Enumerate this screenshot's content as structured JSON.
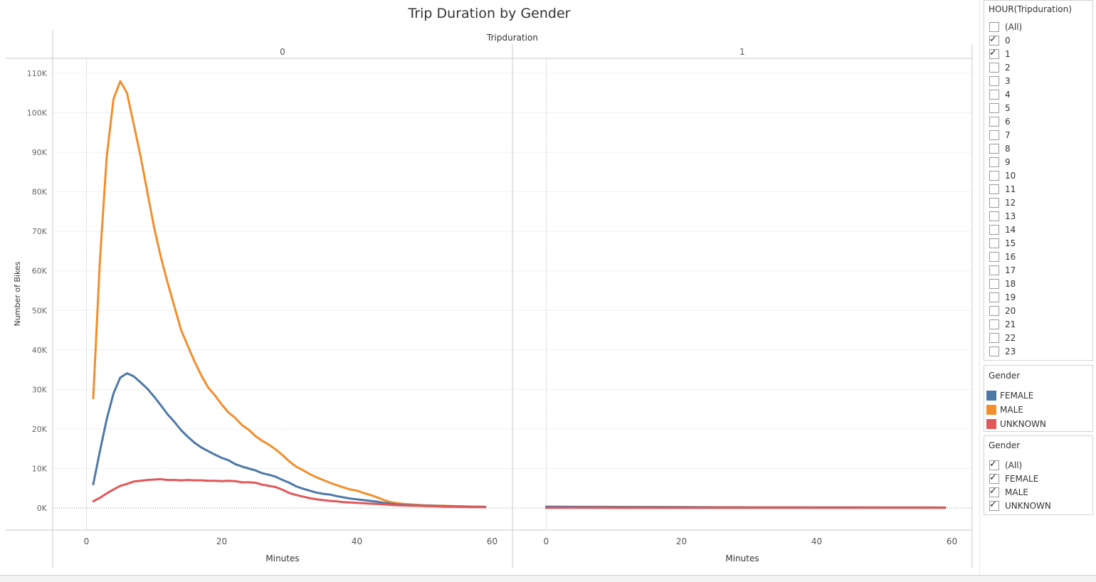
{
  "chart_data": {
    "type": "line",
    "title": "Trip Duration by Gender",
    "column_header": "Tripduration",
    "ylabel": "Number of Bikes",
    "xlabel": "Minutes",
    "ylim": [
      0,
      110000
    ],
    "yticks": [
      0,
      10000,
      20000,
      30000,
      40000,
      50000,
      60000,
      70000,
      80000,
      90000,
      100000,
      110000
    ],
    "ytick_labels": [
      "0K",
      "10K",
      "20K",
      "30K",
      "40K",
      "50K",
      "60K",
      "70K",
      "80K",
      "90K",
      "100K",
      "110K"
    ],
    "xlim": [
      -5,
      63
    ],
    "xticks": [
      0,
      20,
      40,
      60
    ],
    "grid": "horizontal",
    "panes": [
      {
        "label": "0",
        "series": [
          {
            "name": "MALE",
            "color": "#f28e2b",
            "x": [
              1,
              2,
              3,
              4,
              5,
              6,
              7,
              8,
              9,
              10,
              11,
              12,
              13,
              14,
              15,
              16,
              17,
              18,
              19,
              20,
              21,
              22,
              23,
              24,
              25,
              26,
              27,
              28,
              29,
              30,
              31,
              32,
              33,
              34,
              35,
              36,
              37,
              38,
              39,
              40,
              41,
              42,
              43,
              44,
              45,
              46,
              47,
              48,
              49,
              50,
              51,
              52,
              53,
              54,
              55,
              56,
              57,
              58,
              59
            ],
            "values": [
              27800,
              63000,
              89000,
              103500,
              108000,
              105000,
              97000,
              89000,
              80000,
              71000,
              63500,
              57000,
              51000,
              45000,
              41000,
              37000,
              33500,
              30500,
              28500,
              26200,
              24200,
              22800,
              21000,
              19800,
              18200,
              17000,
              16000,
              14800,
              13400,
              11800,
              10500,
              9600,
              8600,
              7800,
              7100,
              6400,
              5800,
              5200,
              4700,
              4400,
              3800,
              3300,
              2700,
              2000,
              1500,
              1200,
              1000,
              900,
              800,
              700,
              650,
              600,
              550,
              500,
              450,
              400,
              350,
              300,
              250
            ]
          },
          {
            "name": "FEMALE",
            "color": "#4e79a7",
            "x": [
              1,
              2,
              3,
              4,
              5,
              6,
              7,
              8,
              9,
              10,
              11,
              12,
              13,
              14,
              15,
              16,
              17,
              18,
              19,
              20,
              21,
              22,
              23,
              24,
              25,
              26,
              27,
              28,
              29,
              30,
              31,
              32,
              33,
              34,
              35,
              36,
              37,
              38,
              39,
              40,
              41,
              42,
              43,
              44,
              45,
              46,
              47,
              48,
              49,
              50,
              51,
              52,
              53,
              54,
              55,
              56,
              57,
              58,
              59
            ],
            "values": [
              6000,
              14500,
              22500,
              29000,
              33000,
              34100,
              33300,
              31800,
              30200,
              28200,
              26000,
              23700,
              21800,
              19700,
              18000,
              16500,
              15300,
              14400,
              13500,
              12700,
              12100,
              11100,
              10500,
              10000,
              9500,
              8800,
              8400,
              7900,
              7100,
              6400,
              5500,
              4900,
              4400,
              3900,
              3600,
              3400,
              3000,
              2700,
              2400,
              2200,
              2000,
              1800,
              1600,
              1300,
              1100,
              900,
              800,
              700,
              650,
              600,
              550,
              500,
              450,
              400,
              380,
              350,
              320,
              300,
              280
            ]
          },
          {
            "name": "UNKNOWN",
            "color": "#e15759",
            "x": [
              1,
              2,
              3,
              4,
              5,
              6,
              7,
              8,
              9,
              10,
              11,
              12,
              13,
              14,
              15,
              16,
              17,
              18,
              19,
              20,
              21,
              22,
              23,
              24,
              25,
              26,
              27,
              28,
              29,
              30,
              31,
              32,
              33,
              34,
              35,
              36,
              37,
              38,
              39,
              40,
              41,
              42,
              43,
              44,
              45,
              46,
              47,
              48,
              49,
              50,
              51,
              52,
              53,
              54,
              55,
              56,
              57,
              58,
              59
            ],
            "values": [
              1700,
              2600,
              3700,
              4700,
              5600,
              6100,
              6700,
              6900,
              7100,
              7200,
              7300,
              7100,
              7100,
              7000,
              7100,
              7000,
              7000,
              6900,
              6900,
              6800,
              6900,
              6800,
              6500,
              6500,
              6400,
              5900,
              5600,
              5300,
              4600,
              3800,
              3300,
              2900,
              2500,
              2200,
              2000,
              1800,
              1700,
              1500,
              1400,
              1300,
              1200,
              1100,
              1000,
              900,
              800,
              700,
              650,
              600,
              550,
              500,
              450,
              400,
              350,
              300,
              280,
              260,
              240,
              220,
              200
            ]
          }
        ]
      },
      {
        "label": "1",
        "series": [
          {
            "name": "MALE",
            "color": "#f28e2b",
            "x": [
              0,
              5,
              10,
              15,
              20,
              25,
              30,
              35,
              40,
              45,
              50,
              55,
              59
            ],
            "values": [
              350,
              300,
              280,
              250,
              220,
              200,
              180,
              160,
              150,
              140,
              130,
              120,
              110
            ]
          },
          {
            "name": "FEMALE",
            "color": "#4e79a7",
            "x": [
              0,
              5,
              10,
              15,
              20,
              25,
              30,
              35,
              40,
              45,
              50,
              55,
              59
            ],
            "values": [
              300,
              250,
              230,
              210,
              190,
              170,
              150,
              140,
              130,
              120,
              110,
              100,
              90
            ]
          },
          {
            "name": "UNKNOWN",
            "color": "#e15759",
            "x": [
              0,
              5,
              10,
              15,
              20,
              25,
              30,
              35,
              40,
              45,
              50,
              55,
              59
            ],
            "values": [
              80,
              70,
              60,
              60,
              50,
              50,
              40,
              40,
              40,
              30,
              30,
              30,
              30
            ]
          }
        ]
      }
    ]
  },
  "filter_hour": {
    "title": "HOUR(Tripduration)",
    "items": [
      {
        "label": "(All)",
        "checked": false
      },
      {
        "label": "0",
        "checked": true
      },
      {
        "label": "1",
        "checked": true
      },
      {
        "label": "2",
        "checked": false
      },
      {
        "label": "3",
        "checked": false
      },
      {
        "label": "4",
        "checked": false
      },
      {
        "label": "5",
        "checked": false
      },
      {
        "label": "6",
        "checked": false
      },
      {
        "label": "7",
        "checked": false
      },
      {
        "label": "8",
        "checked": false
      },
      {
        "label": "9",
        "checked": false
      },
      {
        "label": "10",
        "checked": false
      },
      {
        "label": "11",
        "checked": false
      },
      {
        "label": "12",
        "checked": false
      },
      {
        "label": "13",
        "checked": false
      },
      {
        "label": "14",
        "checked": false
      },
      {
        "label": "15",
        "checked": false
      },
      {
        "label": "16",
        "checked": false
      },
      {
        "label": "17",
        "checked": false
      },
      {
        "label": "18",
        "checked": false
      },
      {
        "label": "19",
        "checked": false
      },
      {
        "label": "20",
        "checked": false
      },
      {
        "label": "21",
        "checked": false
      },
      {
        "label": "22",
        "checked": false
      },
      {
        "label": "23",
        "checked": false
      }
    ]
  },
  "legend": {
    "title": "Gender",
    "items": [
      {
        "label": "FEMALE",
        "color": "#4e79a7"
      },
      {
        "label": "MALE",
        "color": "#f28e2b"
      },
      {
        "label": "UNKNOWN",
        "color": "#e15759"
      }
    ]
  },
  "filter_gender": {
    "title": "Gender",
    "items": [
      {
        "label": "(All)",
        "checked": true
      },
      {
        "label": "FEMALE",
        "checked": true
      },
      {
        "label": "MALE",
        "checked": true
      },
      {
        "label": "UNKNOWN",
        "checked": true
      }
    ]
  },
  "check_glyph": "✓"
}
